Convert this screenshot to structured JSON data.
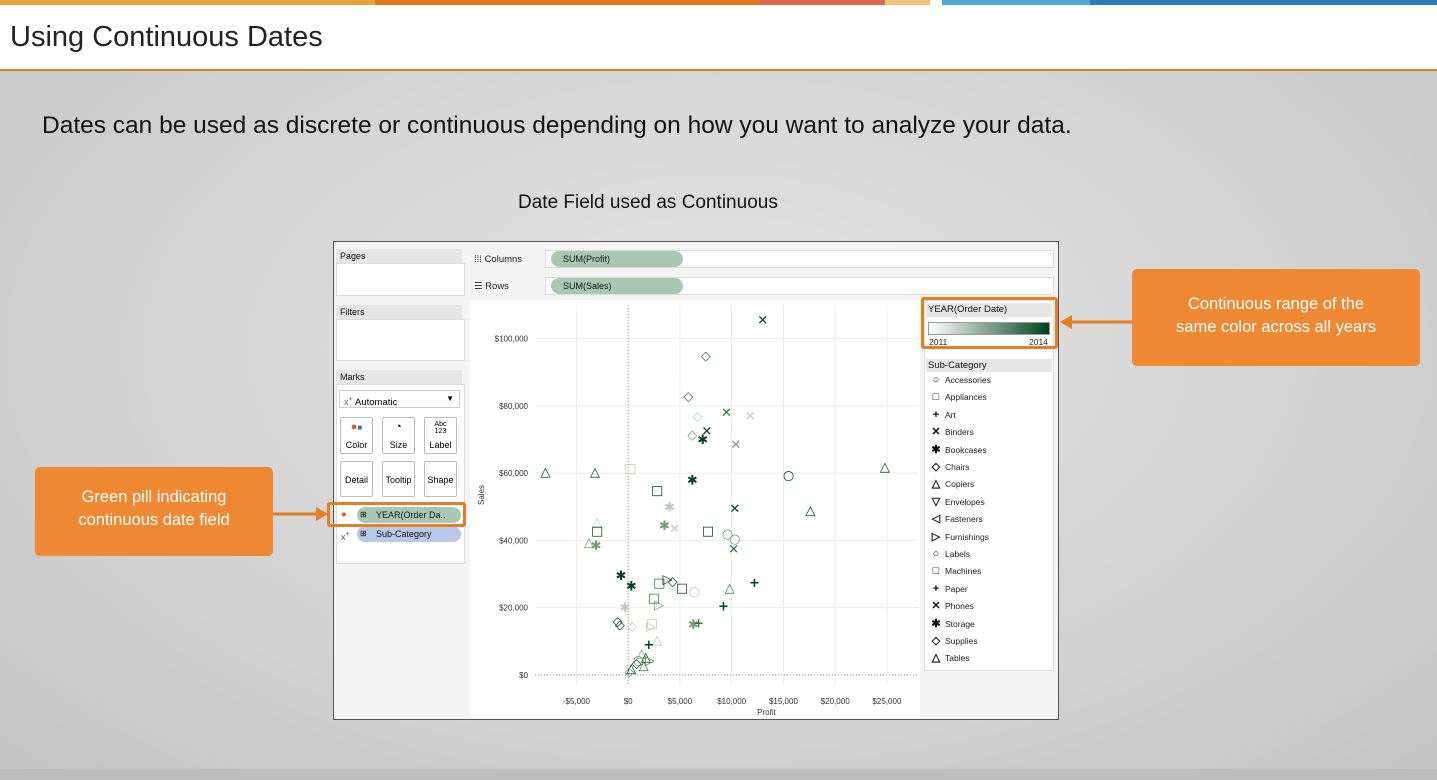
{
  "page": {
    "title": "Using Continuous Dates",
    "intro": "Dates can be used as discrete or continuous depending on how you want to analyze your data.",
    "subtitle": "Date Field used as Continuous",
    "accent_colors": [
      "#e8a33d",
      "#e07a1f",
      "#d9694a",
      "#f2c27a",
      "#4ea6d8",
      "#2a7db8"
    ]
  },
  "callouts": {
    "left": [
      "Green pill indicating",
      "continuous date field"
    ],
    "right": [
      "Continuous range of the",
      "same color across all years"
    ]
  },
  "tableau": {
    "pages_label": "Pages",
    "filters_label": "Filters",
    "marks_label": "Marks",
    "mark_type": "Automatic",
    "mark_type_icon": "chevron-down-icon",
    "mark_buttons": [
      {
        "label": "Color",
        "icon": "color-swatch-icon"
      },
      {
        "label": "Size",
        "icon": "size-icon"
      },
      {
        "label": "Label",
        "icon": "label-abc-icon"
      },
      {
        "label": "Detail",
        "icon": ""
      },
      {
        "label": "Tooltip",
        "icon": ""
      },
      {
        "label": "Shape",
        "icon": ""
      }
    ],
    "label_icon_text": "Abc\n123",
    "mark_pills": [
      {
        "name": "YEAR(Order Da..",
        "icon": "color-swatch-icon",
        "color": "#a8c8b4"
      },
      {
        "name": "Sub-Category",
        "icon": "shape-icon",
        "color": "#b7c8e8"
      }
    ],
    "columns_label": "Columns",
    "rows_label": "Rows",
    "columns_pill": "SUM(Profit)",
    "rows_pill": "SUM(Sales)",
    "pill_color": "#a8c8b4"
  },
  "legend": {
    "color_title": "YEAR(Order Date)",
    "color_min": "2011",
    "color_max": "2014",
    "color_low": "#ffffff",
    "color_high": "#00441b",
    "shape_title": "Sub-Category",
    "items": [
      {
        "name": "Accessories",
        "shape": "circle"
      },
      {
        "name": "Appliances",
        "shape": "square"
      },
      {
        "name": "Art",
        "shape": "plus"
      },
      {
        "name": "Binders",
        "shape": "x"
      },
      {
        "name": "Bookcases",
        "shape": "asterisk"
      },
      {
        "name": "Chairs",
        "shape": "diamond"
      },
      {
        "name": "Copiers",
        "shape": "triangle-up"
      },
      {
        "name": "Envelopes",
        "shape": "triangle-down"
      },
      {
        "name": "Fasteners",
        "shape": "triangle-left"
      },
      {
        "name": "Furnishings",
        "shape": "triangle-right"
      },
      {
        "name": "Labels",
        "shape": "circle"
      },
      {
        "name": "Machines",
        "shape": "square"
      },
      {
        "name": "Paper",
        "shape": "plus"
      },
      {
        "name": "Phones",
        "shape": "x"
      },
      {
        "name": "Storage",
        "shape": "asterisk"
      },
      {
        "name": "Supplies",
        "shape": "diamond"
      },
      {
        "name": "Tables",
        "shape": "triangle-up"
      }
    ]
  },
  "chart_data": {
    "type": "scatter",
    "title": "",
    "xlabel": "Profit",
    "ylabel": "Sales",
    "xlim": [
      -9000,
      28000
    ],
    "ylim": [
      -3000,
      110000
    ],
    "x_ticks": [
      -5000,
      0,
      5000,
      10000,
      15000,
      20000,
      25000
    ],
    "x_tick_labels": [
      "-$5,000",
      "$0",
      "$5,000",
      "$10,000",
      "$15,000",
      "$20,000",
      "$25,000"
    ],
    "y_ticks": [
      0,
      20000,
      40000,
      60000,
      80000,
      100000
    ],
    "y_tick_labels": [
      "$0",
      "$20,000",
      "$40,000",
      "$60,000",
      "$80,000",
      "$100,000"
    ],
    "grid": true,
    "color_by": "year",
    "points": [
      {
        "x": 13000,
        "y": 105500,
        "shape": "x",
        "year": 2014
      },
      {
        "x": 7500,
        "y": 95000,
        "shape": "diamond",
        "year": 2013
      },
      {
        "x": 5800,
        "y": 83000,
        "shape": "diamond",
        "year": 2013
      },
      {
        "x": 9500,
        "y": 78000,
        "shape": "x",
        "year": 2013
      },
      {
        "x": 11800,
        "y": 77000,
        "shape": "x",
        "year": 2011
      },
      {
        "x": 6700,
        "y": 77000,
        "shape": "diamond",
        "year": 2011
      },
      {
        "x": 7600,
        "y": 72500,
        "shape": "x",
        "year": 2014
      },
      {
        "x": 6200,
        "y": 71500,
        "shape": "diamond",
        "year": 2012
      },
      {
        "x": 7200,
        "y": 70000,
        "shape": "asterisk",
        "year": 2014
      },
      {
        "x": 10400,
        "y": 68500,
        "shape": "x",
        "year": 2012
      },
      {
        "x": -8000,
        "y": 60500,
        "shape": "triangle-up",
        "year": 2014
      },
      {
        "x": -3200,
        "y": 60500,
        "shape": "triangle-up",
        "year": 2014
      },
      {
        "x": 200,
        "y": 61500,
        "shape": "square",
        "year": 2011
      },
      {
        "x": 6200,
        "y": 58000,
        "shape": "asterisk",
        "year": 2014
      },
      {
        "x": 15500,
        "y": 59500,
        "shape": "circle",
        "year": 2014
      },
      {
        "x": 24800,
        "y": 62000,
        "shape": "triangle-up",
        "year": 2014
      },
      {
        "x": 2800,
        "y": 55000,
        "shape": "square",
        "year": 2014
      },
      {
        "x": 4000,
        "y": 50000,
        "shape": "asterisk",
        "year": 2011
      },
      {
        "x": 10300,
        "y": 49500,
        "shape": "x",
        "year": 2014
      },
      {
        "x": 17600,
        "y": 49000,
        "shape": "triangle-up",
        "year": 2014
      },
      {
        "x": -3000,
        "y": 45500,
        "shape": "triangle-up",
        "year": 2011
      },
      {
        "x": -3000,
        "y": 43000,
        "shape": "square",
        "year": 2014
      },
      {
        "x": 3500,
        "y": 44500,
        "shape": "asterisk",
        "year": 2012
      },
      {
        "x": 4500,
        "y": 43500,
        "shape": "x",
        "year": 2011
      },
      {
        "x": 7700,
        "y": 43000,
        "shape": "square",
        "year": 2014
      },
      {
        "x": 9600,
        "y": 42000,
        "shape": "circle",
        "year": 2012
      },
      {
        "x": 10300,
        "y": 40500,
        "shape": "circle",
        "year": 2012
      },
      {
        "x": -3800,
        "y": 39500,
        "shape": "triangle-up",
        "year": 2012
      },
      {
        "x": -3100,
        "y": 38500,
        "shape": "asterisk",
        "year": 2012
      },
      {
        "x": 10200,
        "y": 37500,
        "shape": "x",
        "year": 2013
      },
      {
        "x": -700,
        "y": 29500,
        "shape": "asterisk",
        "year": 2014
      },
      {
        "x": 300,
        "y": 26500,
        "shape": "asterisk",
        "year": 2014
      },
      {
        "x": 3000,
        "y": 27500,
        "shape": "square",
        "year": 2013
      },
      {
        "x": 3800,
        "y": 28500,
        "shape": "triangle-right",
        "year": 2014
      },
      {
        "x": 4300,
        "y": 28000,
        "shape": "diamond",
        "year": 2014
      },
      {
        "x": 5200,
        "y": 26000,
        "shape": "square",
        "year": 2014
      },
      {
        "x": 6400,
        "y": 25000,
        "shape": "circle",
        "year": 2011
      },
      {
        "x": 9800,
        "y": 26000,
        "shape": "triangle-up",
        "year": 2013
      },
      {
        "x": 12200,
        "y": 27500,
        "shape": "plus",
        "year": 2014
      },
      {
        "x": 2500,
        "y": 23000,
        "shape": "square",
        "year": 2013
      },
      {
        "x": 3000,
        "y": 21000,
        "shape": "triangle-right",
        "year": 2012
      },
      {
        "x": -300,
        "y": 20000,
        "shape": "asterisk",
        "year": 2011
      },
      {
        "x": 9200,
        "y": 20500,
        "shape": "plus",
        "year": 2014
      },
      {
        "x": -1000,
        "y": 16000,
        "shape": "diamond",
        "year": 2014
      },
      {
        "x": -800,
        "y": 15000,
        "shape": "diamond",
        "year": 2014
      },
      {
        "x": 400,
        "y": 14500,
        "shape": "diamond",
        "year": 2011
      },
      {
        "x": 2200,
        "y": 14500,
        "shape": "triangle-right",
        "year": 2011
      },
      {
        "x": 2300,
        "y": 15500,
        "shape": "square",
        "year": 2011
      },
      {
        "x": 6300,
        "y": 15000,
        "shape": "asterisk",
        "year": 2012
      },
      {
        "x": 6800,
        "y": 15500,
        "shape": "plus",
        "year": 2013
      },
      {
        "x": 2800,
        "y": 10500,
        "shape": "triangle-up",
        "year": 2011
      },
      {
        "x": 2000,
        "y": 9000,
        "shape": "plus",
        "year": 2014
      },
      {
        "x": 1300,
        "y": 6500,
        "shape": "triangle-up",
        "year": 2012
      },
      {
        "x": 1700,
        "y": 5500,
        "shape": "triangle-up",
        "year": 2014
      },
      {
        "x": 1000,
        "y": 4500,
        "shape": "circle",
        "year": 2012
      },
      {
        "x": 2100,
        "y": 4500,
        "shape": "triangle-right",
        "year": 2013
      },
      {
        "x": 800,
        "y": 3500,
        "shape": "diamond",
        "year": 2014
      },
      {
        "x": 1500,
        "y": 3000,
        "shape": "triangle-up",
        "year": 2013
      },
      {
        "x": 300,
        "y": 2000,
        "shape": "triangle-up",
        "year": 2014
      },
      {
        "x": 100,
        "y": 1000,
        "shape": "diamond",
        "year": 2012
      }
    ]
  }
}
